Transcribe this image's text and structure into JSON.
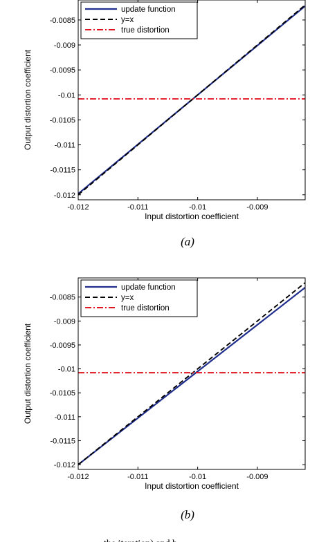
{
  "chart_data": [
    {
      "type": "line",
      "panel": "(a)",
      "xlabel": "Input distortion coefficient",
      "ylabel": "Output distortion coefficient",
      "xlim": [
        -0.012,
        -0.0082
      ],
      "ylim": [
        -0.0121,
        -0.0081
      ],
      "xticks": [
        -0.012,
        -0.011,
        -0.01,
        -0.009
      ],
      "xtick_labels": [
        "-0.012",
        "-0.011",
        "-0.01",
        "-0.009"
      ],
      "yticks": [
        -0.012,
        -0.0115,
        -0.011,
        -0.0105,
        -0.01,
        -0.0095,
        -0.009,
        -0.0085
      ],
      "ytick_labels": [
        "-0.012",
        "-0.0115",
        "-0.011",
        "-0.0105",
        "-0.01",
        "-0.0095",
        "-0.009",
        "-0.0085"
      ],
      "legend_position": "top-left",
      "grid": false,
      "series": [
        {
          "name": "update function",
          "style": "solid",
          "color": "#1f2d8c",
          "x": [
            -0.012,
            -0.0082
          ],
          "y": [
            -0.01198,
            -0.00822
          ]
        },
        {
          "name": "y=x",
          "style": "dashed",
          "color": "#000000",
          "x": [
            -0.012,
            -0.0082
          ],
          "y": [
            -0.012,
            -0.0082
          ]
        },
        {
          "name": "true distortion",
          "style": "dashdot",
          "color": "#e0141e",
          "x": [
            -0.012,
            -0.0082
          ],
          "y": [
            -0.01008,
            -0.01008
          ]
        }
      ]
    },
    {
      "type": "line",
      "panel": "(b)",
      "xlabel": "Input distortion coefficient",
      "ylabel": "Output distortion coefficient",
      "xlim": [
        -0.012,
        -0.0082
      ],
      "ylim": [
        -0.0121,
        -0.0081
      ],
      "xticks": [
        -0.012,
        -0.011,
        -0.01,
        -0.009
      ],
      "xtick_labels": [
        "-0.012",
        "-0.011",
        "-0.01",
        "-0.009"
      ],
      "yticks": [
        -0.012,
        -0.0115,
        -0.011,
        -0.0105,
        -0.01,
        -0.0095,
        -0.009,
        -0.0085
      ],
      "ytick_labels": [
        "-0.012",
        "-0.0115",
        "-0.011",
        "-0.0105",
        "-0.01",
        "-0.0095",
        "-0.009",
        "-0.0085"
      ],
      "legend_position": "top-left",
      "grid": false,
      "series": [
        {
          "name": "update function",
          "style": "solid",
          "color": "#1f2d8c",
          "x": [
            -0.012,
            -0.0082
          ],
          "y": [
            -0.012,
            -0.0083
          ]
        },
        {
          "name": "y=x",
          "style": "dashed",
          "color": "#000000",
          "x": [
            -0.012,
            -0.0082
          ],
          "y": [
            -0.012,
            -0.0082
          ]
        },
        {
          "name": "true distortion",
          "style": "dashdot",
          "color": "#e0141e",
          "x": [
            -0.012,
            -0.0082
          ],
          "y": [
            -0.01008,
            -0.01008
          ]
        }
      ]
    }
  ],
  "bottom_text": "the iteration) and b"
}
